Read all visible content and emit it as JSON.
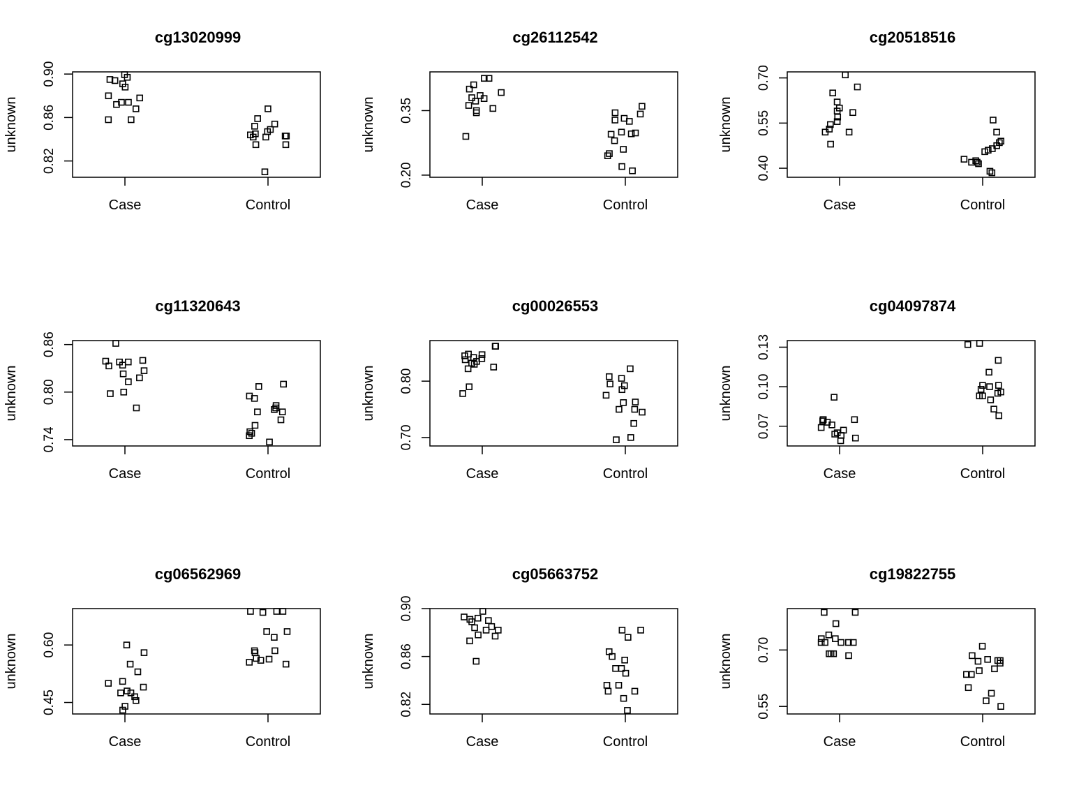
{
  "chart_data": [
    {
      "type": "scatter",
      "title": "cg13020999",
      "ylabel": "unknown",
      "categories": [
        "Case",
        "Control"
      ],
      "ylim": [
        0.805,
        0.902
      ],
      "yticks": [
        "0.82",
        "0.86",
        "0.90"
      ],
      "series": [
        {
          "name": "Case",
          "values": [
            0.9,
            0.897,
            0.895,
            0.894,
            0.891,
            0.888,
            0.88,
            0.878,
            0.874,
            0.874,
            0.872,
            0.868,
            0.858,
            0.858
          ]
        },
        {
          "name": "Control",
          "values": [
            0.868,
            0.859,
            0.854,
            0.852,
            0.849,
            0.847,
            0.845,
            0.844,
            0.843,
            0.843,
            0.842,
            0.842,
            0.835,
            0.835,
            0.81
          ]
        }
      ]
    },
    {
      "type": "scatter",
      "title": "cg26112542",
      "ylabel": "unknown",
      "categories": [
        "Case",
        "Control"
      ],
      "ylim": [
        0.195,
        0.44
      ],
      "yticks": [
        "0.20",
        "0.35"
      ],
      "series": [
        {
          "name": "Case",
          "values": [
            0.425,
            0.425,
            0.41,
            0.4,
            0.392,
            0.385,
            0.38,
            0.378,
            0.372,
            0.362,
            0.355,
            0.35,
            0.345,
            0.29
          ]
        },
        {
          "name": "Control",
          "values": [
            0.36,
            0.345,
            0.342,
            0.332,
            0.328,
            0.325,
            0.3,
            0.298,
            0.296,
            0.295,
            0.28,
            0.26,
            0.25,
            0.245,
            0.22,
            0.21
          ]
        }
      ]
    },
    {
      "type": "scatter",
      "title": "cg20518516",
      "ylabel": "unknown",
      "categories": [
        "Case",
        "Control"
      ],
      "ylim": [
        0.37,
        0.72
      ],
      "yticks": [
        "0.40",
        "0.55",
        "0.70"
      ],
      "series": [
        {
          "name": "Case",
          "values": [
            0.71,
            0.67,
            0.65,
            0.62,
            0.6,
            0.59,
            0.585,
            0.57,
            0.555,
            0.545,
            0.53,
            0.52,
            0.52,
            0.48
          ]
        },
        {
          "name": "Control",
          "values": [
            0.56,
            0.52,
            0.49,
            0.485,
            0.475,
            0.465,
            0.46,
            0.455,
            0.43,
            0.425,
            0.42,
            0.42,
            0.415,
            0.39,
            0.385
          ]
        }
      ]
    },
    {
      "type": "scatter",
      "title": "cg11320643",
      "ylabel": "unknown",
      "categories": [
        "Case",
        "Control"
      ],
      "ylim": [
        0.732,
        0.865
      ],
      "yticks": [
        "0.74",
        "0.80",
        "0.86"
      ],
      "series": [
        {
          "name": "Case",
          "values": [
            0.862,
            0.84,
            0.839,
            0.838,
            0.838,
            0.834,
            0.833,
            0.827,
            0.823,
            0.818,
            0.813,
            0.8,
            0.798,
            0.78
          ]
        },
        {
          "name": "Control",
          "values": [
            0.81,
            0.807,
            0.795,
            0.792,
            0.783,
            0.78,
            0.778,
            0.775,
            0.775,
            0.765,
            0.758,
            0.75,
            0.748,
            0.745,
            0.737
          ]
        }
      ]
    },
    {
      "type": "scatter",
      "title": "cg00026553",
      "ylabel": "unknown",
      "categories": [
        "Case",
        "Control"
      ],
      "ylim": [
        0.685,
        0.872
      ],
      "yticks": [
        "0.70",
        "0.80"
      ],
      "series": [
        {
          "name": "Case",
          "values": [
            0.862,
            0.862,
            0.848,
            0.847,
            0.845,
            0.842,
            0.84,
            0.838,
            0.835,
            0.832,
            0.83,
            0.825,
            0.822,
            0.79,
            0.778
          ]
        },
        {
          "name": "Control",
          "values": [
            0.822,
            0.808,
            0.805,
            0.795,
            0.792,
            0.785,
            0.775,
            0.763,
            0.762,
            0.75,
            0.75,
            0.745,
            0.725,
            0.7,
            0.696
          ]
        }
      ]
    },
    {
      "type": "scatter",
      "title": "cg04097874",
      "ylabel": "unknown",
      "categories": [
        "Case",
        "Control"
      ],
      "ylim": [
        0.055,
        0.135
      ],
      "yticks": [
        "0.07",
        "0.10",
        "0.13"
      ],
      "series": [
        {
          "name": "Case",
          "values": [
            0.092,
            0.075,
            0.075,
            0.075,
            0.074,
            0.073,
            0.071,
            0.069,
            0.067,
            0.065,
            0.064,
            0.063,
            0.061,
            0.059
          ]
        },
        {
          "name": "Control",
          "values": [
            0.133,
            0.132,
            0.12,
            0.111,
            0.101,
            0.101,
            0.1,
            0.098,
            0.096,
            0.095,
            0.093,
            0.093,
            0.09,
            0.083,
            0.078
          ]
        }
      ]
    },
    {
      "type": "scatter",
      "title": "cg06562969",
      "ylabel": "unknown",
      "categories": [
        "Case",
        "Control"
      ],
      "ylim": [
        0.42,
        0.695
      ],
      "yticks": [
        "0.45",
        "0.60"
      ],
      "series": [
        {
          "name": "Case",
          "values": [
            0.6,
            0.58,
            0.55,
            0.53,
            0.505,
            0.5,
            0.49,
            0.48,
            0.475,
            0.475,
            0.465,
            0.455,
            0.44,
            0.43
          ]
        },
        {
          "name": "Control",
          "values": [
            0.69,
            0.69,
            0.688,
            0.685,
            0.635,
            0.635,
            0.62,
            0.585,
            0.585,
            0.58,
            0.565,
            0.563,
            0.56,
            0.555,
            0.55
          ]
        }
      ]
    },
    {
      "type": "scatter",
      "title": "cg05663752",
      "ylabel": "unknown",
      "categories": [
        "Case",
        "Control"
      ],
      "ylim": [
        0.812,
        0.9
      ],
      "yticks": [
        "0.82",
        "0.86",
        "0.90"
      ],
      "series": [
        {
          "name": "Case",
          "values": [
            0.898,
            0.893,
            0.892,
            0.891,
            0.89,
            0.889,
            0.885,
            0.884,
            0.882,
            0.882,
            0.878,
            0.877,
            0.873,
            0.856
          ]
        },
        {
          "name": "Control",
          "values": [
            0.882,
            0.882,
            0.876,
            0.864,
            0.86,
            0.857,
            0.85,
            0.85,
            0.846,
            0.836,
            0.836,
            0.831,
            0.831,
            0.825,
            0.815
          ]
        }
      ]
    },
    {
      "type": "scatter",
      "title": "cg19822755",
      "ylabel": "unknown",
      "categories": [
        "Case",
        "Control"
      ],
      "ylim": [
        0.53,
        0.81
      ],
      "yticks": [
        "0.55",
        "0.70"
      ],
      "series": [
        {
          "name": "Case",
          "values": [
            0.8,
            0.8,
            0.77,
            0.74,
            0.73,
            0.73,
            0.72,
            0.72,
            0.72,
            0.72,
            0.72,
            0.69,
            0.69,
            0.69,
            0.685
          ]
        },
        {
          "name": "Control",
          "values": [
            0.71,
            0.685,
            0.675,
            0.672,
            0.672,
            0.67,
            0.665,
            0.65,
            0.645,
            0.635,
            0.635,
            0.6,
            0.585,
            0.565,
            0.55
          ]
        }
      ]
    }
  ]
}
